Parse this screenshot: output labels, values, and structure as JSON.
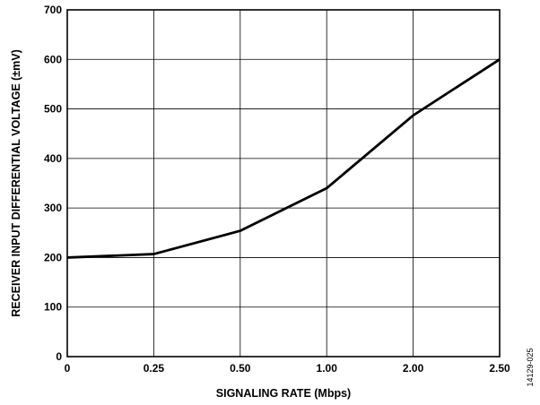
{
  "chart_data": {
    "type": "line",
    "title": "",
    "xlabel": "SIGNALING RATE (Mbps)",
    "ylabel": "RECEIVER INPUT DIFFERENTIAL VOLTAGE (±mV)",
    "categories": [
      "0",
      "0.25",
      "0.50",
      "1.00",
      "2.00",
      "2.50"
    ],
    "ylim": [
      0,
      700
    ],
    "yticks": [
      "0",
      "100",
      "200",
      "300",
      "400",
      "500",
      "600",
      "700"
    ],
    "grid": true,
    "series": [
      {
        "values": [
          200,
          207,
          254,
          340,
          487,
          600
        ]
      }
    ],
    "line_color": "#000000"
  },
  "figure_id": "14129-025"
}
